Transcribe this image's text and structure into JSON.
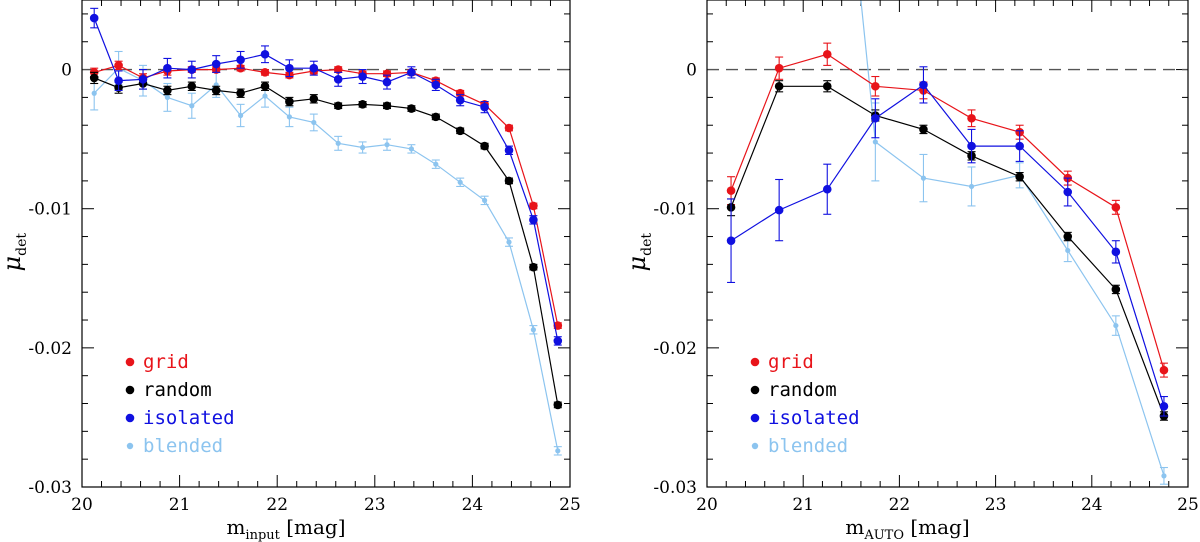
{
  "chart_data": [
    {
      "type": "line",
      "xlabel": "m",
      "xlabel_sub": "input",
      "xlabel_unit": "[mag]",
      "ylabel": "μ",
      "ylabel_sub": "det",
      "xlim": [
        20,
        25
      ],
      "ylim": [
        -0.03,
        0.005
      ],
      "x_ticks": [
        20,
        21,
        22,
        23,
        24,
        25
      ],
      "y_ticks": [
        0,
        -0.01,
        -0.02,
        -0.03
      ],
      "y_tick_labels": [
        "0",
        "-0.01",
        "-0.02",
        "-0.03"
      ],
      "reference_line": 0,
      "legend_placement": "bottom-left",
      "series": [
        {
          "name": "grid",
          "color": "#e8141a",
          "marker_size": "medium",
          "x": [
            20.125,
            20.375,
            20.625,
            20.875,
            21.125,
            21.375,
            21.625,
            21.875,
            22.125,
            22.375,
            22.625,
            22.875,
            23.125,
            23.375,
            23.625,
            23.875,
            24.125,
            24.375,
            24.625,
            24.875
          ],
          "y": [
            -0.0002,
            0.0003,
            -0.0006,
            -0.0001,
            0.0,
            0.0,
            0.0001,
            -0.0002,
            -0.0004,
            -0.0001,
            0.0,
            -0.0003,
            -0.0003,
            -0.0002,
            -0.0008,
            -0.0017,
            -0.0025,
            -0.0042,
            -0.0098,
            -0.0184
          ],
          "err": [
            0.0003,
            0.0003,
            0.0003,
            0.0003,
            0.0002,
            0.0002,
            0.0002,
            0.0002,
            0.0002,
            0.0002,
            0.0002,
            0.0002,
            0.0002,
            0.0002,
            0.0002,
            0.0002,
            0.0002,
            0.0002,
            0.0002,
            0.0002
          ]
        },
        {
          "name": "random",
          "color": "#000000",
          "marker_size": "medium",
          "x": [
            20.125,
            20.375,
            20.625,
            20.875,
            21.125,
            21.375,
            21.625,
            21.875,
            22.125,
            22.375,
            22.625,
            22.875,
            23.125,
            23.375,
            23.625,
            23.875,
            24.125,
            24.375,
            24.625,
            24.875
          ],
          "y": [
            -0.0006,
            -0.0013,
            -0.001,
            -0.0015,
            -0.0012,
            -0.0015,
            -0.0017,
            -0.0012,
            -0.0023,
            -0.0021,
            -0.0026,
            -0.0025,
            -0.0026,
            -0.0028,
            -0.0034,
            -0.0044,
            -0.0055,
            -0.008,
            -0.0142,
            -0.0241
          ],
          "err": [
            0.0004,
            0.0004,
            0.0004,
            0.0003,
            0.0003,
            0.0003,
            0.0003,
            0.0003,
            0.0003,
            0.0003,
            0.0002,
            0.0002,
            0.0002,
            0.0002,
            0.0002,
            0.0002,
            0.0002,
            0.0002,
            0.0002,
            0.0002
          ]
        },
        {
          "name": "isolated",
          "color": "#1010e0",
          "marker_size": "medium",
          "x": [
            20.125,
            20.375,
            20.625,
            20.875,
            21.125,
            21.375,
            21.625,
            21.875,
            22.125,
            22.375,
            22.625,
            22.875,
            23.125,
            23.375,
            23.625,
            23.875,
            24.125,
            24.375,
            24.625,
            24.875
          ],
          "y": [
            0.0037,
            -0.0008,
            -0.0007,
            0.0001,
            0.0,
            0.0004,
            0.0007,
            0.0011,
            0.0001,
            0.0001,
            -0.0007,
            -0.0005,
            -0.0009,
            -0.0002,
            -0.0011,
            -0.0022,
            -0.0027,
            -0.0058,
            -0.0108,
            -0.0195
          ],
          "err": [
            0.0007,
            0.0007,
            0.0007,
            0.0007,
            0.0006,
            0.0006,
            0.0006,
            0.0006,
            0.0006,
            0.0005,
            0.0005,
            0.0005,
            0.0005,
            0.0004,
            0.0004,
            0.0004,
            0.0004,
            0.0003,
            0.0003,
            0.0003
          ]
        },
        {
          "name": "blended",
          "color": "#8cc4ef",
          "marker_size": "small",
          "x": [
            20.125,
            20.375,
            20.625,
            20.875,
            21.125,
            21.375,
            21.625,
            21.875,
            22.125,
            22.375,
            22.625,
            22.875,
            23.125,
            23.375,
            23.625,
            23.875,
            24.125,
            24.375,
            24.625,
            24.875
          ],
          "y": [
            -0.0017,
            0.0001,
            -0.0008,
            -0.002,
            -0.0026,
            -0.0011,
            -0.0033,
            -0.0019,
            -0.0034,
            -0.0038,
            -0.0053,
            -0.0056,
            -0.0054,
            -0.0057,
            -0.0068,
            -0.0081,
            -0.0094,
            -0.0124,
            -0.0187,
            -0.0274
          ],
          "err": [
            0.0012,
            0.0012,
            0.0011,
            0.001,
            0.0009,
            0.0009,
            0.0008,
            0.0008,
            0.0007,
            0.0006,
            0.0005,
            0.0004,
            0.0004,
            0.0003,
            0.0003,
            0.0003,
            0.0003,
            0.0003,
            0.0003,
            0.0003
          ]
        }
      ],
      "legend": [
        "grid",
        "random",
        "isolated",
        "blended"
      ]
    },
    {
      "type": "line",
      "xlabel": "m",
      "xlabel_sub": "AUTO",
      "xlabel_unit": "[mag]",
      "ylabel": "μ",
      "ylabel_sub": "det",
      "xlim": [
        20,
        25
      ],
      "ylim": [
        -0.03,
        0.005
      ],
      "x_ticks": [
        20,
        21,
        22,
        23,
        24,
        25
      ],
      "y_ticks": [
        0,
        -0.01,
        -0.02,
        -0.03
      ],
      "y_tick_labels": [
        "0",
        "-0.01",
        "-0.02",
        "-0.03"
      ],
      "reference_line": 0,
      "legend_placement": "bottom-left",
      "series": [
        {
          "name": "grid",
          "color": "#e8141a",
          "marker_size": "medium",
          "x": [
            20.25,
            20.75,
            21.25,
            21.75,
            22.25,
            22.75,
            23.25,
            23.75,
            24.25,
            24.75
          ],
          "y": [
            -0.0087,
            0.0001,
            0.0011,
            -0.0012,
            -0.0015,
            -0.0035,
            -0.0045,
            -0.0078,
            -0.0099,
            -0.0216
          ],
          "err": [
            0.001,
            0.0008,
            0.0008,
            0.0007,
            0.0006,
            0.0006,
            0.0005,
            0.0005,
            0.0005,
            0.0005
          ]
        },
        {
          "name": "random",
          "color": "#000000",
          "marker_size": "medium",
          "x": [
            20.25,
            20.75,
            21.25,
            21.75,
            22.25,
            22.75,
            23.25,
            23.75,
            24.25,
            24.75
          ],
          "y": [
            -0.0099,
            -0.0012,
            -0.0012,
            -0.0033,
            -0.0043,
            -0.0062,
            -0.0077,
            -0.012,
            -0.0158,
            -0.0249
          ],
          "err": [
            0.0006,
            0.0004,
            0.0004,
            0.0004,
            0.0003,
            0.0003,
            0.0003,
            0.0003,
            0.0003,
            0.0003
          ]
        },
        {
          "name": "isolated",
          "color": "#1010e0",
          "marker_size": "medium",
          "x": [
            20.25,
            20.75,
            21.25,
            21.75,
            22.25,
            22.75,
            23.25,
            23.75,
            24.25,
            24.75
          ],
          "y": [
            -0.0123,
            -0.0101,
            -0.0086,
            -0.0035,
            -0.0011,
            -0.0055,
            -0.0055,
            -0.0088,
            -0.0131,
            -0.0242
          ],
          "err": [
            0.003,
            0.0022,
            0.0018,
            0.0014,
            0.0013,
            0.0012,
            0.0011,
            0.001,
            0.0008,
            0.0007
          ]
        },
        {
          "name": "blended",
          "color": "#8cc4ef",
          "marker_size": "small",
          "x": [
            21.75,
            22.25,
            22.75,
            23.25,
            23.75,
            24.25,
            24.75
          ],
          "y": [
            -0.0052,
            -0.0078,
            -0.0084,
            -0.0076,
            -0.013,
            -0.0184,
            -0.0292
          ],
          "err": [
            0.0028,
            0.0017,
            0.0014,
            0.0009,
            0.0008,
            0.0007,
            0.0006
          ],
          "offscale_segment_from": [
            21.6,
            0.005
          ]
        }
      ],
      "legend": [
        "grid",
        "random",
        "isolated",
        "blended"
      ]
    }
  ]
}
